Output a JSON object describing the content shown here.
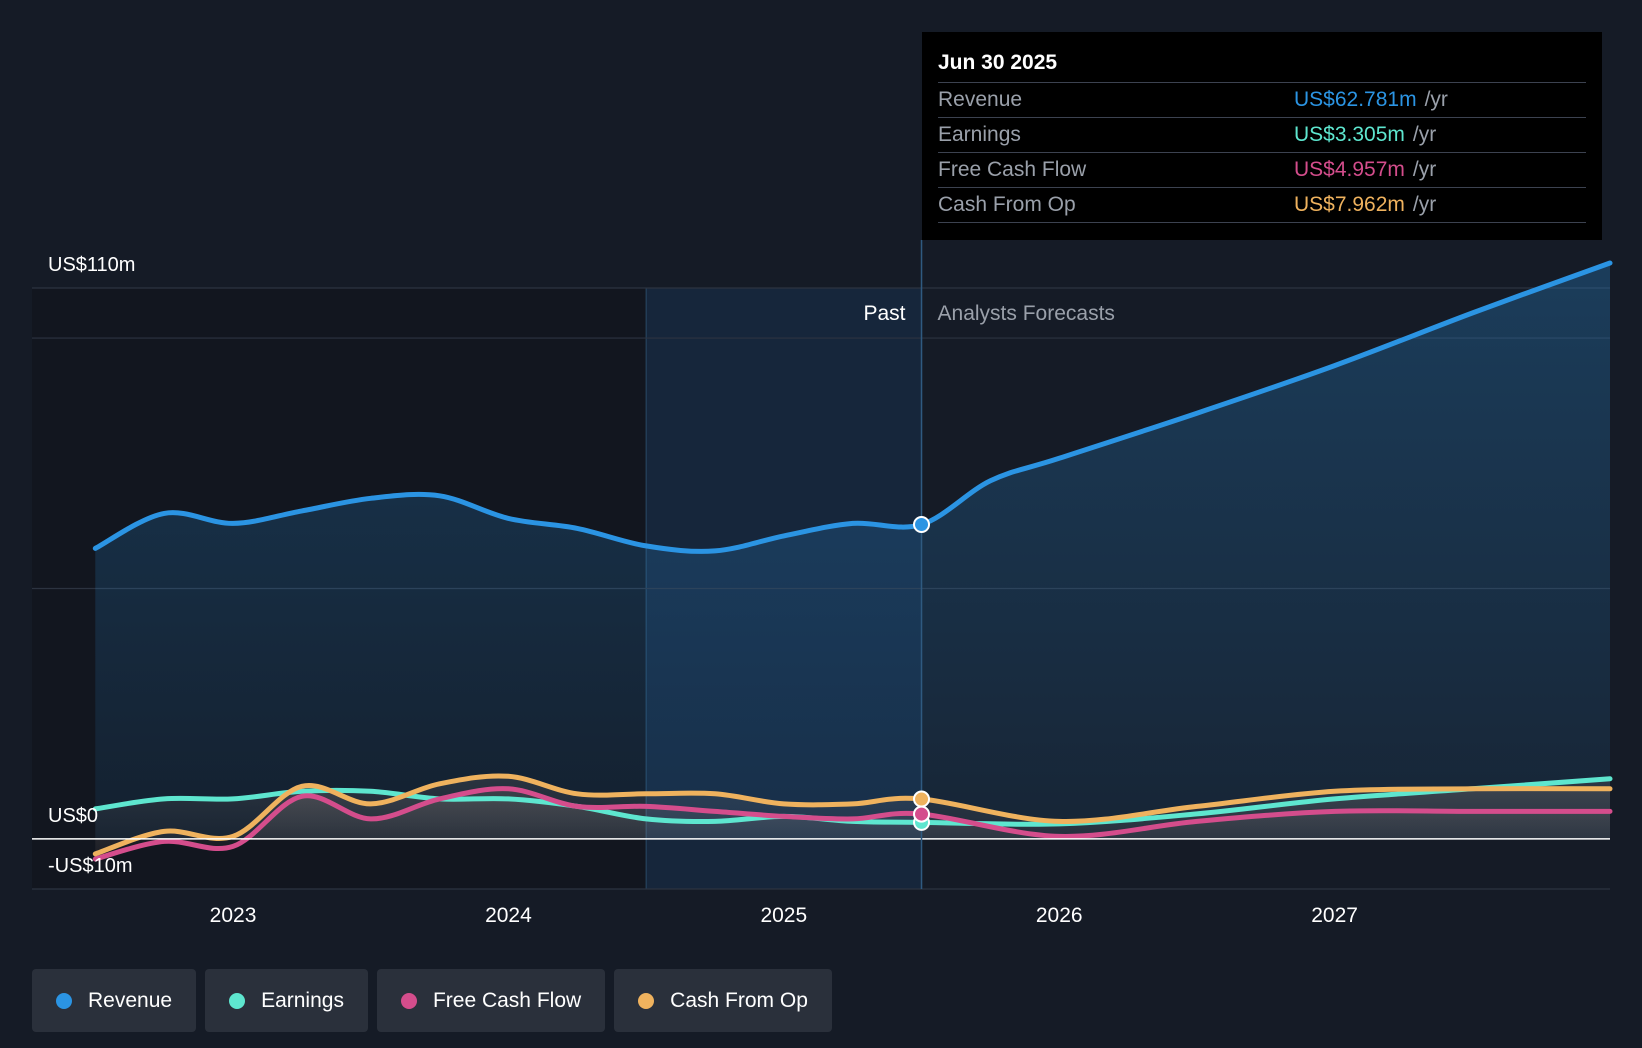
{
  "chart_data": {
    "type": "line",
    "y_axis": {
      "top_label": "US$110m",
      "zero_label": "US$0",
      "bottom_label": "-US$10m",
      "ylim": [
        -10,
        110
      ]
    },
    "x_ticks": [
      "2023",
      "2024",
      "2025",
      "2026",
      "2027"
    ],
    "x_tick_values": [
      2023.0,
      2024.0,
      2025.0,
      2026.0,
      2027.0
    ],
    "xlim": [
      2022.27,
      2028.0
    ],
    "regions": {
      "past_label": "Past",
      "forecast_label": "Analysts Forecasts",
      "divider_x": 2025.5,
      "highlight_start_x": 2024.5
    },
    "tooltip": {
      "date": "Jun 30 2025",
      "rows": [
        {
          "label": "Revenue",
          "value": "US$62.781m",
          "unit": "/yr",
          "color": "#2b94e3"
        },
        {
          "label": "Earnings",
          "value": "US$3.305m",
          "unit": "/yr",
          "color": "#5ee6cf"
        },
        {
          "label": "Free Cash Flow",
          "value": "US$4.957m",
          "unit": "/yr",
          "color": "#d44d8c"
        },
        {
          "label": "Cash From Op",
          "value": "US$7.962m",
          "unit": "/yr",
          "color": "#efb25e"
        }
      ]
    },
    "series": [
      {
        "name": "Revenue",
        "color": "#2b94e3",
        "x": [
          2022.5,
          2022.75,
          2023.0,
          2023.25,
          2023.5,
          2023.75,
          2024.0,
          2024.25,
          2024.5,
          2024.75,
          2025.0,
          2025.25,
          2025.5,
          2025.75,
          2026.0,
          2026.5,
          2027.0,
          2027.5,
          2028.0
        ],
        "values": [
          58,
          65,
          63,
          65.5,
          68,
          68.5,
          64,
          62,
          58.5,
          57.5,
          60.5,
          63,
          62.781,
          71.5,
          76,
          85,
          94.5,
          105,
          115
        ]
      },
      {
        "name": "Earnings",
        "color": "#5ee6cf",
        "x": [
          2022.5,
          2022.75,
          2023.0,
          2023.25,
          2023.5,
          2023.75,
          2024.0,
          2024.25,
          2024.5,
          2024.75,
          2025.0,
          2025.25,
          2025.5,
          2026.0,
          2026.5,
          2027.0,
          2027.5,
          2028.0
        ],
        "values": [
          6,
          8,
          8,
          9.5,
          9.5,
          8,
          8,
          6.5,
          4,
          3.5,
          4.5,
          3.5,
          3.305,
          3,
          5,
          8,
          10,
          12
        ]
      },
      {
        "name": "Free Cash Flow",
        "color": "#d44d8c",
        "x": [
          2022.5,
          2022.75,
          2023.0,
          2023.25,
          2023.5,
          2023.75,
          2024.0,
          2024.25,
          2024.5,
          2024.75,
          2025.0,
          2025.25,
          2025.5,
          2026.0,
          2026.5,
          2027.0,
          2027.5,
          2028.0
        ],
        "values": [
          -4,
          -0.5,
          -1.5,
          8.5,
          4,
          8,
          10,
          6.5,
          6.5,
          5.5,
          4.5,
          4,
          4.957,
          0.5,
          3.5,
          5.5,
          5.5,
          5.5
        ]
      },
      {
        "name": "Cash From Op",
        "color": "#efb25e",
        "x": [
          2022.5,
          2022.75,
          2023.0,
          2023.25,
          2023.5,
          2023.75,
          2024.0,
          2024.25,
          2024.5,
          2024.75,
          2025.0,
          2025.25,
          2025.5,
          2026.0,
          2026.5,
          2027.0,
          2027.5,
          2028.0
        ],
        "values": [
          -3,
          1.5,
          0.5,
          10.5,
          7,
          11,
          12.5,
          9,
          9,
          9,
          7,
          7,
          7.962,
          3.5,
          6.5,
          9.5,
          10,
          10
        ]
      }
    ]
  },
  "legend": [
    {
      "label": "Revenue",
      "color": "#2b94e3"
    },
    {
      "label": "Earnings",
      "color": "#5ee6cf"
    },
    {
      "label": "Free Cash Flow",
      "color": "#d44d8c"
    },
    {
      "label": "Cash From Op",
      "color": "#efb25e"
    }
  ]
}
